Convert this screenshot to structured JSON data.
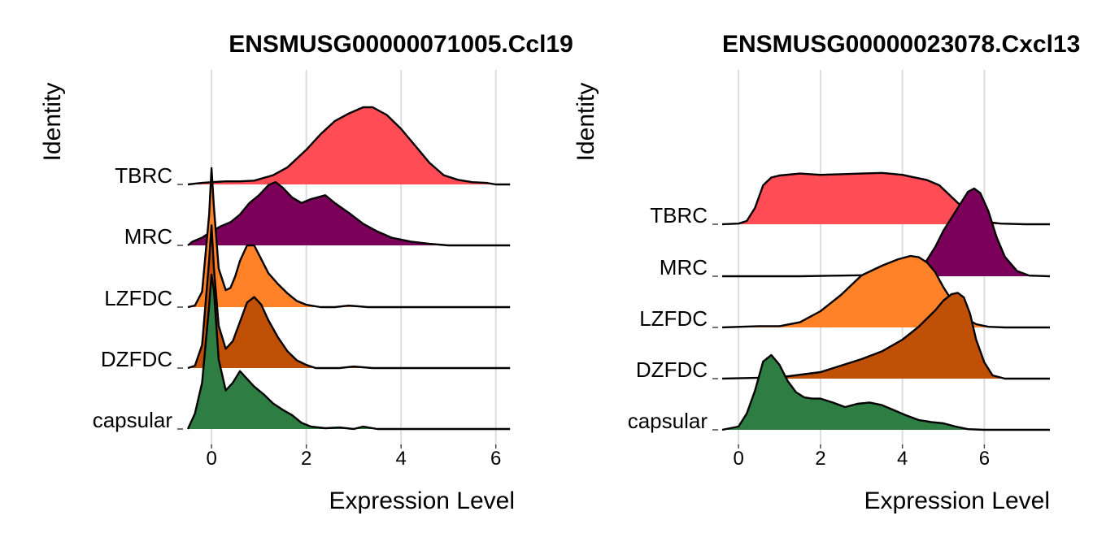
{
  "chart_data": [
    {
      "type": "area",
      "subtype": "ridgeline",
      "title": "ENSMUSG00000071005.Ccl19",
      "xlabel": "Expression Level",
      "ylabel": "Identity",
      "xlim": [
        -0.5,
        6.4
      ],
      "xticks": [
        0,
        2,
        4,
        6
      ],
      "grid": true,
      "categories": [
        "TBRC",
        "MRC",
        "LZFDC",
        "DZFDC",
        "capsular"
      ],
      "series": [
        {
          "category": "TBRC",
          "color": "#FF4C55",
          "scale": 1.25,
          "x": [
            -0.5,
            -0.2,
            0.0,
            0.3,
            0.6,
            0.9,
            1.3,
            1.6,
            2.0,
            2.3,
            2.6,
            2.9,
            3.2,
            3.4,
            3.7,
            4.0,
            4.3,
            4.6,
            4.9,
            5.2,
            5.5,
            5.8,
            6.0,
            6.3
          ],
          "y": [
            0.0,
            0.02,
            0.03,
            0.04,
            0.04,
            0.05,
            0.12,
            0.22,
            0.45,
            0.65,
            0.82,
            0.92,
            1.0,
            1.0,
            0.9,
            0.72,
            0.5,
            0.28,
            0.12,
            0.06,
            0.03,
            0.02,
            0.0,
            0.0
          ]
        },
        {
          "category": "MRC",
          "color": "#7B0059",
          "scale": 1.25,
          "x": [
            -0.5,
            -0.4,
            -0.2,
            0.0,
            0.2,
            0.4,
            0.6,
            0.8,
            1.0,
            1.2,
            1.35,
            1.5,
            1.7,
            1.9,
            2.1,
            2.4,
            2.6,
            2.9,
            3.2,
            3.5,
            3.8,
            4.2,
            4.6,
            5.0,
            5.5,
            6.3
          ],
          "y": [
            0.0,
            0.05,
            0.1,
            0.18,
            0.25,
            0.3,
            0.4,
            0.55,
            0.65,
            0.78,
            0.82,
            0.75,
            0.62,
            0.55,
            0.6,
            0.65,
            0.55,
            0.42,
            0.28,
            0.18,
            0.1,
            0.05,
            0.02,
            0.0,
            0.0,
            0.0
          ]
        },
        {
          "category": "LZFDC",
          "color": "#FF8228",
          "scale": 1.25,
          "x": [
            -0.5,
            -0.35,
            -0.2,
            -0.05,
            0.0,
            0.05,
            0.15,
            0.3,
            0.4,
            0.5,
            0.6,
            0.75,
            0.9,
            1.05,
            1.2,
            1.4,
            1.6,
            1.8,
            2.0,
            2.3,
            2.6,
            2.9,
            3.3,
            4.0,
            5.0,
            6.3
          ],
          "y": [
            0.0,
            0.02,
            0.2,
            1.2,
            1.8,
            1.3,
            0.5,
            0.22,
            0.25,
            0.4,
            0.6,
            0.8,
            0.8,
            0.62,
            0.44,
            0.3,
            0.18,
            0.08,
            0.03,
            0.0,
            0.0,
            0.02,
            0.0,
            0.0,
            0.0,
            0.0
          ]
        },
        {
          "category": "DZFDC",
          "color": "#BF5005",
          "scale": 1.25,
          "x": [
            -0.5,
            -0.35,
            -0.2,
            -0.05,
            0.0,
            0.05,
            0.15,
            0.3,
            0.45,
            0.6,
            0.75,
            0.9,
            1.05,
            1.2,
            1.4,
            1.6,
            1.8,
            2.0,
            2.2,
            2.4,
            2.7,
            3.0,
            3.4,
            4.0,
            5.0,
            6.3
          ],
          "y": [
            0.0,
            0.03,
            0.3,
            1.4,
            1.85,
            1.3,
            0.55,
            0.25,
            0.35,
            0.6,
            0.85,
            0.92,
            0.82,
            0.62,
            0.4,
            0.22,
            0.1,
            0.04,
            0.0,
            0.0,
            0.0,
            0.02,
            0.0,
            0.0,
            0.0,
            0.0
          ]
        },
        {
          "category": "capsular",
          "color": "#2E7D43",
          "scale": 1.25,
          "x": [
            -0.5,
            -0.35,
            -0.2,
            -0.05,
            0.0,
            0.05,
            0.15,
            0.3,
            0.45,
            0.6,
            0.75,
            0.9,
            1.1,
            1.3,
            1.5,
            1.7,
            1.9,
            2.1,
            2.4,
            2.7,
            3.0,
            3.2,
            3.5,
            4.0,
            5.0,
            6.3
          ],
          "y": [
            0.0,
            0.2,
            0.6,
            1.6,
            2.0,
            1.8,
            0.9,
            0.5,
            0.6,
            0.75,
            0.65,
            0.55,
            0.45,
            0.33,
            0.25,
            0.18,
            0.08,
            0.03,
            0.01,
            0.02,
            0.0,
            0.03,
            0.0,
            0.0,
            0.0,
            0.0
          ]
        }
      ]
    },
    {
      "type": "area",
      "subtype": "ridgeline",
      "title": "ENSMUSG00000023078.Cxcl13",
      "xlabel": "Expression Level",
      "ylabel": "Identity",
      "xlim": [
        -0.4,
        7.6
      ],
      "xticks": [
        0,
        2,
        4,
        6
      ],
      "grid": true,
      "categories": [
        "TBRC",
        "MRC",
        "LZFDC",
        "DZFDC",
        "capsular"
      ],
      "series": [
        {
          "category": "TBRC",
          "color": "#FF4C55",
          "scale": 1.25,
          "x": [
            -0.4,
            0.0,
            0.2,
            0.4,
            0.6,
            0.8,
            1.0,
            1.5,
            2.0,
            2.5,
            3.0,
            3.5,
            4.0,
            4.3,
            4.6,
            4.9,
            5.1,
            5.4,
            5.7,
            6.0,
            6.4,
            7.0,
            7.6
          ],
          "y": [
            0.0,
            0.01,
            0.05,
            0.25,
            0.6,
            0.72,
            0.75,
            0.78,
            0.76,
            0.77,
            0.78,
            0.79,
            0.76,
            0.72,
            0.68,
            0.6,
            0.48,
            0.3,
            0.12,
            0.04,
            0.01,
            0.0,
            0.0
          ]
        },
        {
          "category": "MRC",
          "color": "#7B0059",
          "scale": 1.25,
          "x": [
            -0.4,
            0.5,
            1.5,
            2.5,
            3.5,
            4.0,
            4.5,
            4.8,
            5.0,
            5.2,
            5.4,
            5.6,
            5.75,
            5.9,
            6.1,
            6.3,
            6.5,
            6.8,
            7.1,
            7.6
          ],
          "y": [
            0.0,
            0.0,
            0.0,
            0.01,
            0.02,
            0.04,
            0.15,
            0.45,
            0.7,
            0.9,
            1.1,
            1.3,
            1.35,
            1.28,
            1.0,
            0.6,
            0.3,
            0.08,
            0.01,
            0.0
          ]
        },
        {
          "category": "LZFDC",
          "color": "#FF8228",
          "scale": 1.25,
          "x": [
            -0.4,
            0.5,
            1.0,
            1.5,
            2.0,
            2.5,
            3.0,
            3.5,
            3.9,
            4.2,
            4.4,
            4.6,
            4.8,
            5.0,
            5.2,
            5.4,
            5.6,
            5.8,
            6.1,
            6.5,
            7.0,
            7.6
          ],
          "y": [
            0.0,
            0.02,
            0.02,
            0.08,
            0.25,
            0.5,
            0.8,
            0.95,
            1.05,
            1.1,
            1.08,
            1.0,
            0.85,
            0.62,
            0.42,
            0.25,
            0.12,
            0.05,
            0.01,
            0.0,
            0.0,
            0.0
          ]
        },
        {
          "category": "DZFDC",
          "color": "#BF5005",
          "scale": 1.25,
          "x": [
            -0.4,
            1.0,
            2.0,
            3.0,
            3.5,
            4.0,
            4.4,
            4.8,
            5.0,
            5.2,
            5.35,
            5.5,
            5.65,
            5.8,
            6.0,
            6.2,
            6.5,
            7.0,
            7.6
          ],
          "y": [
            0.0,
            0.02,
            0.1,
            0.3,
            0.42,
            0.6,
            0.8,
            1.05,
            1.2,
            1.3,
            1.32,
            1.25,
            1.0,
            0.6,
            0.25,
            0.05,
            0.0,
            0.0,
            0.0
          ]
        },
        {
          "category": "capsular",
          "color": "#2E7D43",
          "scale": 1.25,
          "x": [
            -0.4,
            0.0,
            0.2,
            0.4,
            0.6,
            0.8,
            1.0,
            1.2,
            1.4,
            1.6,
            1.8,
            2.0,
            2.3,
            2.6,
            2.9,
            3.2,
            3.5,
            3.8,
            4.1,
            4.4,
            4.7,
            5.0,
            5.3,
            5.6,
            6.0,
            7.0,
            7.6
          ],
          "y": [
            0.0,
            0.05,
            0.25,
            0.6,
            1.05,
            1.15,
            1.0,
            0.75,
            0.58,
            0.5,
            0.48,
            0.48,
            0.42,
            0.35,
            0.4,
            0.42,
            0.38,
            0.3,
            0.22,
            0.15,
            0.12,
            0.1,
            0.05,
            0.01,
            0.0,
            0.0,
            0.0
          ]
        }
      ]
    }
  ]
}
